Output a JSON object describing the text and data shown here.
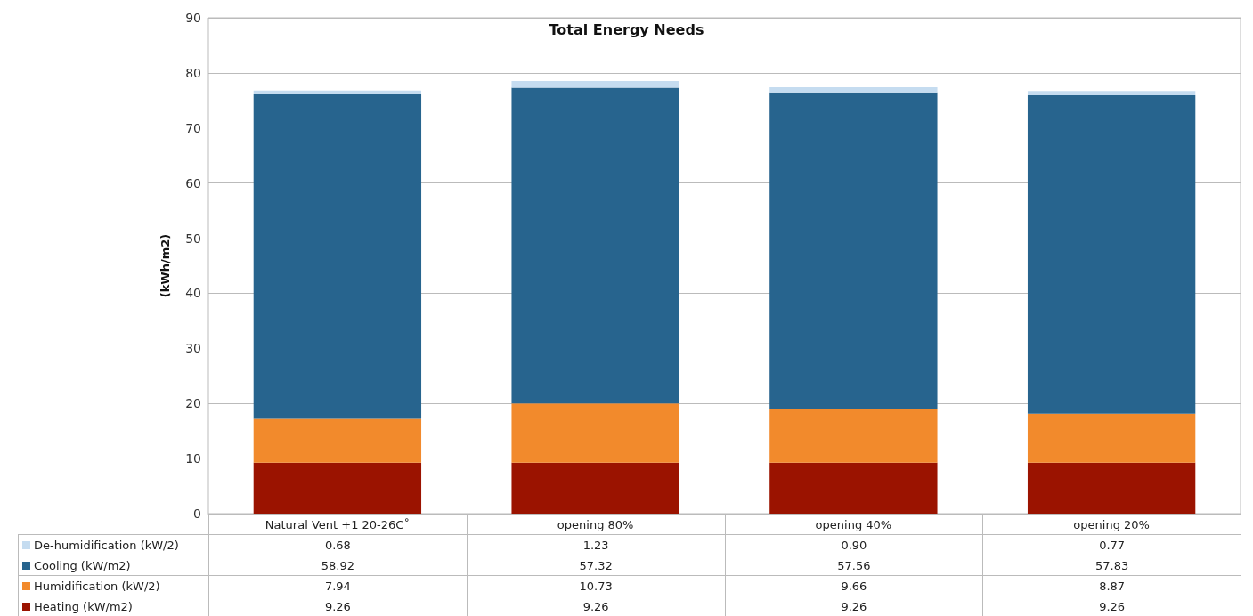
{
  "chart_data": {
    "type": "bar",
    "stacked": true,
    "title": "Total Energy Needs",
    "ylabel": "(kWh/m2)",
    "categories": [
      "Natural Vent +1 20-26C˚",
      "opening 80%",
      "opening 40%",
      "opening 20%"
    ],
    "series": [
      {
        "name": "Heating (kW/m2)",
        "color": "#9b1300",
        "values": [
          9.26,
          9.26,
          9.26,
          9.26
        ],
        "value_labels": [
          "9.26",
          "9.26",
          "9.26",
          "9.26"
        ]
      },
      {
        "name": "Humidification (kW/2)",
        "color": "#f28a2c",
        "values": [
          7.94,
          10.73,
          9.66,
          8.87
        ],
        "value_labels": [
          "7.94",
          "10.73",
          "9.66",
          "8.87"
        ]
      },
      {
        "name": "Cooling (kW/m2)",
        "color": "#27648e",
        "values": [
          58.92,
          57.32,
          57.56,
          57.83
        ],
        "value_labels": [
          "58.92",
          "57.32",
          "57.56",
          "57.83"
        ]
      },
      {
        "name": "De-humidification (kW/2)",
        "color": "#c5dcf0",
        "values": [
          0.68,
          1.23,
          0.9,
          0.77
        ],
        "value_labels": [
          "0.68",
          "1.23",
          "0.90",
          "0.77"
        ]
      }
    ],
    "ylim": [
      0,
      90
    ],
    "yticks": [
      0,
      10,
      20,
      30,
      40,
      50,
      60,
      70,
      80,
      90
    ],
    "grid": "y",
    "legend": "bottom"
  }
}
